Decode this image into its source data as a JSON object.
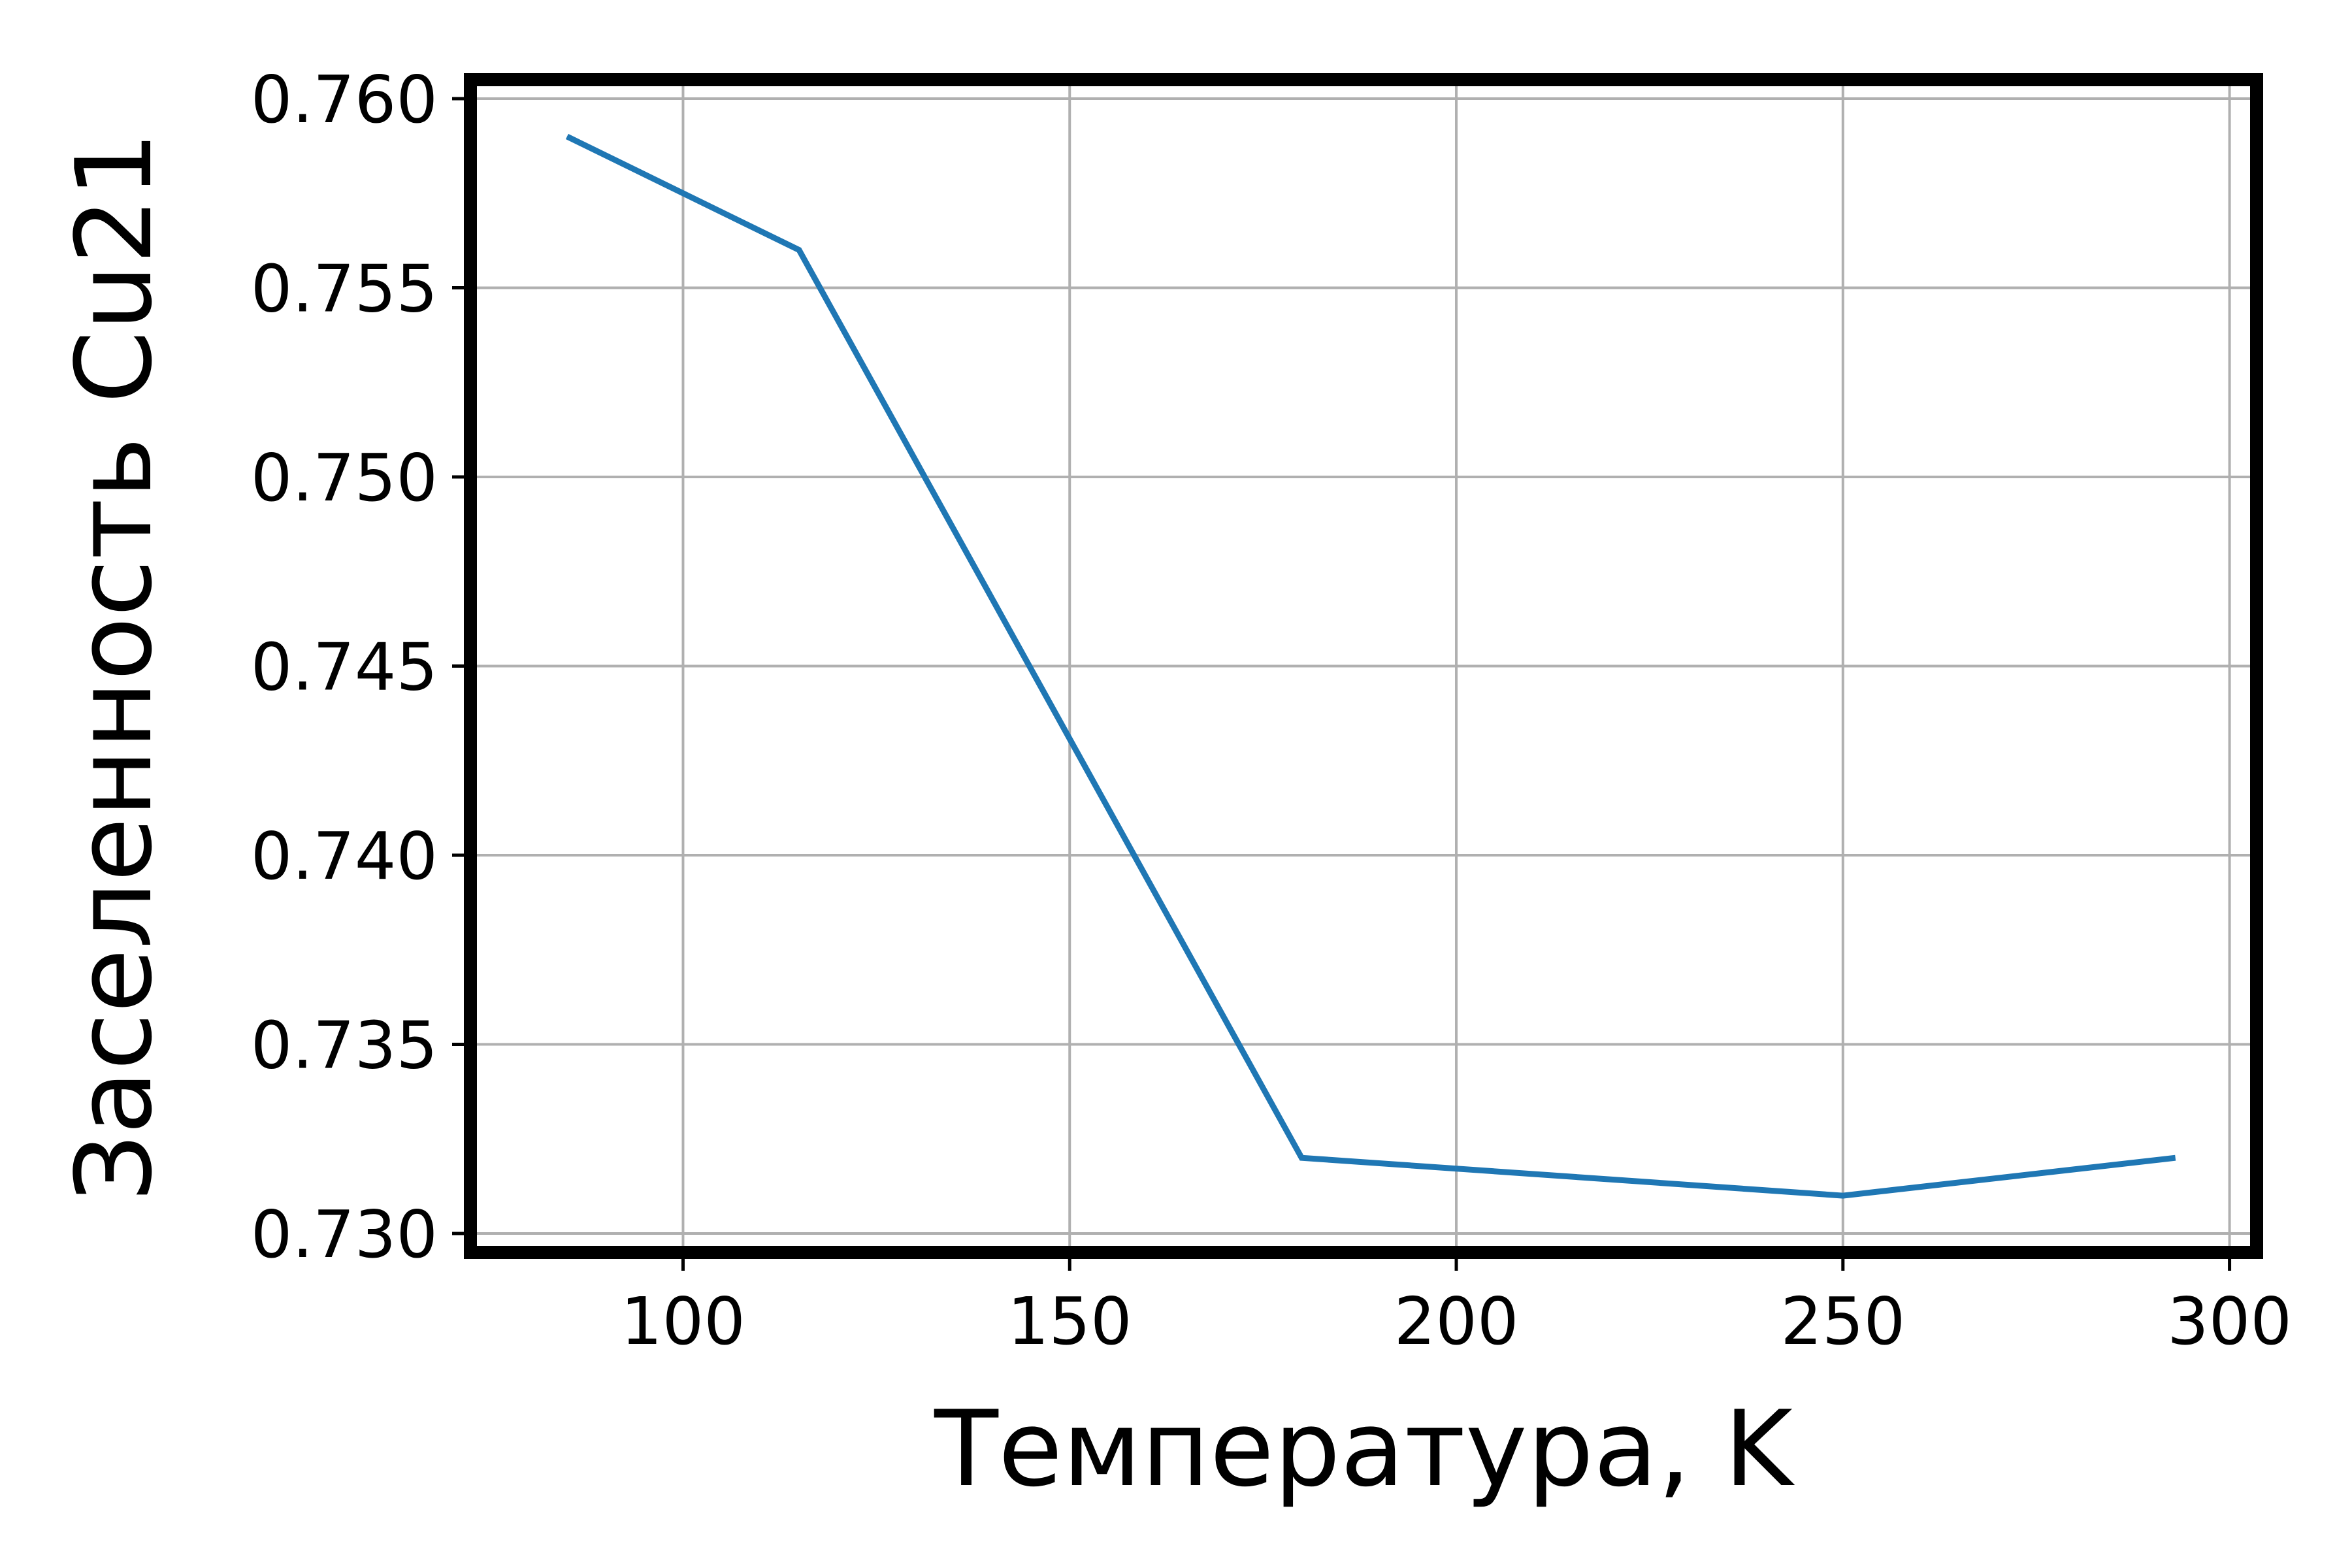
{
  "chart_data": {
    "type": "line",
    "title": "",
    "xlabel": "Температура, K",
    "ylabel": "Заселенность Cu21",
    "xlim": [
      72.5,
      303.5
    ],
    "ylim": [
      0.7295,
      0.7605
    ],
    "xticks": [
      100,
      150,
      200,
      250,
      300
    ],
    "xtick_labels": [
      "100",
      "150",
      "200",
      "250",
      "300"
    ],
    "yticks": [
      0.73,
      0.735,
      0.74,
      0.745,
      0.75,
      0.755,
      0.76
    ],
    "ytick_labels": [
      "0.730",
      "0.735",
      "0.740",
      "0.745",
      "0.750",
      "0.755",
      "0.760"
    ],
    "grid": true,
    "legend": "none",
    "series": [
      {
        "color": "#1f77b4",
        "x": [
          85,
          115,
          180,
          250,
          293
        ],
        "y": [
          0.759,
          0.756,
          0.732,
          0.731,
          0.732
        ]
      }
    ]
  }
}
